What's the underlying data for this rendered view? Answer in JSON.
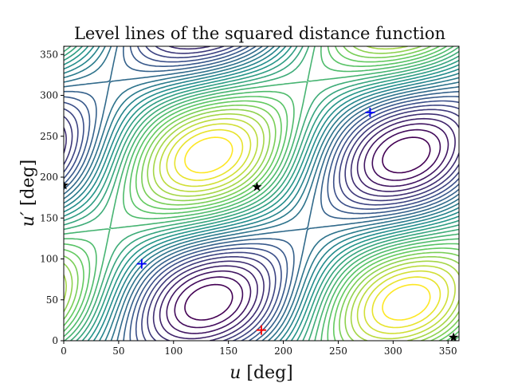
{
  "chart_data": {
    "type": "contour",
    "title": "Level lines of the squared distance function",
    "xlabel_var": "u",
    "xlabel_unit": " [deg]",
    "ylabel_var": "u′",
    "ylabel_unit": " [deg]",
    "xlim": [
      0,
      360
    ],
    "ylim": [
      0,
      360
    ],
    "xticks": [
      0,
      50,
      100,
      150,
      200,
      250,
      300,
      350
    ],
    "yticks": [
      0,
      50,
      100,
      150,
      200,
      250,
      300,
      350
    ],
    "grid": false,
    "legend": "none",
    "colormap": "viridis",
    "levels": 30,
    "markers": [
      {
        "symbol": "star",
        "color": "#000000",
        "x": 0,
        "y": 190
      },
      {
        "symbol": "star",
        "color": "#000000",
        "x": 176,
        "y": 188
      },
      {
        "symbol": "star",
        "color": "#000000",
        "x": 355,
        "y": 4
      },
      {
        "symbol": "plus",
        "color": "#0000ff",
        "x": 71,
        "y": 94
      },
      {
        "symbol": "plus",
        "color": "#0000ff",
        "x": 279,
        "y": 279
      },
      {
        "symbol": "plus",
        "color": "#ff0000",
        "x": 180,
        "y": 13
      }
    ]
  }
}
